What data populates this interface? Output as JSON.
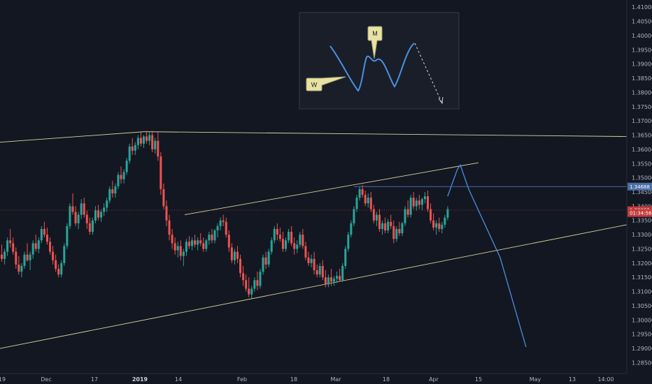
{
  "chart_data": {
    "type": "candlestick",
    "y_axis": {
      "range": [
        1.2775,
        1.4125
      ],
      "ticks": [
        "1.41000",
        "1.40500",
        "1.40000",
        "1.39500",
        "1.39000",
        "1.38500",
        "1.38000",
        "1.37500",
        "1.37000",
        "1.36500",
        "1.36000",
        "1.35500",
        "1.35000",
        "1.34500",
        "1.34000",
        "1.33500",
        "1.33000",
        "1.32500",
        "1.32000",
        "1.31500",
        "1.31000",
        "1.30500",
        "1.30000",
        "1.29500",
        "1.29000",
        "1.28500",
        "1.28000"
      ]
    },
    "x_axis": {
      "ticks": [
        {
          "label": "19",
          "bold": false
        },
        {
          "label": "Dec",
          "bold": false
        },
        {
          "label": "17",
          "bold": false
        },
        {
          "label": "2019",
          "bold": true
        },
        {
          "label": "14",
          "bold": false
        },
        {
          "label": "Feb",
          "bold": false
        },
        {
          "label": "18",
          "bold": false
        },
        {
          "label": "Mar",
          "bold": false
        },
        {
          "label": "18",
          "bold": false
        },
        {
          "label": "Apr",
          "bold": false
        },
        {
          "label": "15",
          "bold": false
        },
        {
          "label": "May",
          "bold": false
        },
        {
          "label": "13",
          "bold": false
        },
        {
          "label": "14:00",
          "bold": false
        }
      ]
    },
    "price_badges": [
      {
        "label": "1.34688",
        "value": 1.3469,
        "color": "#4a6fa5"
      },
      {
        "label": "1.33862",
        "value": 1.3386,
        "color": "#c13b3b"
      },
      {
        "label": "01:34:56",
        "value": 1.3376,
        "color": "#c13b3b"
      }
    ],
    "candles_ohlc": [
      [
        1.323,
        1.3265,
        1.3205,
        1.3215
      ],
      [
        1.3215,
        1.325,
        1.3195,
        1.324
      ],
      [
        1.324,
        1.329,
        1.3225,
        1.328
      ],
      [
        1.328,
        1.332,
        1.3255,
        1.327
      ],
      [
        1.327,
        1.329,
        1.323,
        1.324
      ],
      [
        1.324,
        1.3255,
        1.318,
        1.3195
      ],
      [
        1.3195,
        1.3225,
        1.316,
        1.317
      ],
      [
        1.317,
        1.32,
        1.315,
        1.319
      ],
      [
        1.319,
        1.324,
        1.318,
        1.323
      ],
      [
        1.323,
        1.327,
        1.3205,
        1.321
      ],
      [
        1.321,
        1.324,
        1.3175,
        1.323
      ],
      [
        1.323,
        1.328,
        1.3215,
        1.327
      ],
      [
        1.327,
        1.33,
        1.324,
        1.325
      ],
      [
        1.325,
        1.329,
        1.3235,
        1.328
      ],
      [
        1.328,
        1.333,
        1.327,
        1.332
      ],
      [
        1.332,
        1.3345,
        1.329,
        1.33
      ],
      [
        1.33,
        1.3325,
        1.3265,
        1.3275
      ],
      [
        1.3275,
        1.329,
        1.323,
        1.324
      ],
      [
        1.324,
        1.326,
        1.3195,
        1.321
      ],
      [
        1.321,
        1.323,
        1.317,
        1.318
      ],
      [
        1.318,
        1.3195,
        1.315,
        1.316
      ],
      [
        1.316,
        1.321,
        1.315,
        1.32
      ],
      [
        1.32,
        1.327,
        1.319,
        1.326
      ],
      [
        1.326,
        1.334,
        1.325,
        1.333
      ],
      [
        1.333,
        1.341,
        1.332,
        1.34
      ],
      [
        1.34,
        1.3445,
        1.337,
        1.338
      ],
      [
        1.338,
        1.34,
        1.333,
        1.334
      ],
      [
        1.334,
        1.338,
        1.332,
        1.337
      ],
      [
        1.337,
        1.3425,
        1.3355,
        1.341
      ],
      [
        1.341,
        1.343,
        1.336,
        1.337
      ],
      [
        1.337,
        1.3385,
        1.332,
        1.334
      ],
      [
        1.334,
        1.336,
        1.33,
        1.331
      ],
      [
        1.331,
        1.336,
        1.33,
        1.335
      ],
      [
        1.335,
        1.34,
        1.334,
        1.3385
      ],
      [
        1.3385,
        1.3405,
        1.335,
        1.336
      ],
      [
        1.336,
        1.339,
        1.3345,
        1.338
      ],
      [
        1.338,
        1.341,
        1.3365,
        1.3395
      ],
      [
        1.3395,
        1.343,
        1.338,
        1.342
      ],
      [
        1.342,
        1.347,
        1.341,
        1.346
      ],
      [
        1.346,
        1.349,
        1.343,
        1.3445
      ],
      [
        1.3445,
        1.348,
        1.343,
        1.347
      ],
      [
        1.347,
        1.352,
        1.346,
        1.351
      ],
      [
        1.351,
        1.354,
        1.348,
        1.3495
      ],
      [
        1.3495,
        1.353,
        1.348,
        1.352
      ],
      [
        1.352,
        1.357,
        1.351,
        1.356
      ],
      [
        1.356,
        1.362,
        1.355,
        1.361
      ],
      [
        1.361,
        1.364,
        1.358,
        1.3595
      ],
      [
        1.3595,
        1.3625,
        1.358,
        1.3615
      ],
      [
        1.3615,
        1.365,
        1.36,
        1.364
      ],
      [
        1.364,
        1.366,
        1.361,
        1.362
      ],
      [
        1.362,
        1.365,
        1.3605,
        1.3645
      ],
      [
        1.3645,
        1.3665,
        1.362,
        1.363
      ],
      [
        1.363,
        1.366,
        1.3615,
        1.365
      ],
      [
        1.365,
        1.3665,
        1.359,
        1.36
      ],
      [
        1.36,
        1.364,
        1.3585,
        1.363
      ],
      [
        1.363,
        1.366,
        1.356,
        1.3575
      ],
      [
        1.3575,
        1.359,
        1.344,
        1.346
      ],
      [
        1.346,
        1.348,
        1.339,
        1.34
      ],
      [
        1.34,
        1.342,
        1.333,
        1.335
      ],
      [
        1.335,
        1.337,
        1.328,
        1.33
      ],
      [
        1.33,
        1.332,
        1.325,
        1.327
      ],
      [
        1.327,
        1.329,
        1.323,
        1.3245
      ],
      [
        1.3245,
        1.3275,
        1.322,
        1.326
      ],
      [
        1.326,
        1.328,
        1.321,
        1.3225
      ],
      [
        1.3225,
        1.325,
        1.319,
        1.324
      ],
      [
        1.324,
        1.3285,
        1.3225,
        1.3275
      ],
      [
        1.3275,
        1.3295,
        1.325,
        1.326
      ],
      [
        1.326,
        1.329,
        1.3245,
        1.328
      ],
      [
        1.328,
        1.33,
        1.3255,
        1.3265
      ],
      [
        1.3265,
        1.329,
        1.3245,
        1.328
      ],
      [
        1.328,
        1.3305,
        1.326,
        1.327
      ],
      [
        1.327,
        1.329,
        1.324,
        1.325
      ],
      [
        1.325,
        1.3285,
        1.324,
        1.328
      ],
      [
        1.328,
        1.331,
        1.3265,
        1.33
      ],
      [
        1.33,
        1.332,
        1.327,
        1.328
      ],
      [
        1.328,
        1.332,
        1.327,
        1.3315
      ],
      [
        1.3315,
        1.334,
        1.329,
        1.333
      ],
      [
        1.333,
        1.336,
        1.3315,
        1.335
      ],
      [
        1.335,
        1.337,
        1.333,
        1.3345
      ],
      [
        1.3345,
        1.336,
        1.329,
        1.33
      ],
      [
        1.33,
        1.3315,
        1.324,
        1.3255
      ],
      [
        1.3255,
        1.327,
        1.32,
        1.321
      ],
      [
        1.321,
        1.325,
        1.3195,
        1.324
      ],
      [
        1.324,
        1.326,
        1.32,
        1.3215
      ],
      [
        1.3215,
        1.323,
        1.315,
        1.3165
      ],
      [
        1.3165,
        1.319,
        1.312,
        1.314
      ],
      [
        1.314,
        1.316,
        1.31,
        1.311
      ],
      [
        1.311,
        1.315,
        1.308,
        1.309
      ],
      [
        1.309,
        1.312,
        1.3075,
        1.311
      ],
      [
        1.311,
        1.315,
        1.31,
        1.314
      ],
      [
        1.314,
        1.317,
        1.3105,
        1.312
      ],
      [
        1.312,
        1.318,
        1.311,
        1.317
      ],
      [
        1.317,
        1.323,
        1.316,
        1.322
      ],
      [
        1.322,
        1.324,
        1.318,
        1.3195
      ],
      [
        1.3195,
        1.325,
        1.3185,
        1.324
      ],
      [
        1.324,
        1.329,
        1.323,
        1.328
      ],
      [
        1.328,
        1.333,
        1.327,
        1.332
      ],
      [
        1.332,
        1.334,
        1.328,
        1.33
      ],
      [
        1.33,
        1.3325,
        1.3275,
        1.3285
      ],
      [
        1.3285,
        1.331,
        1.324,
        1.325
      ],
      [
        1.325,
        1.329,
        1.324,
        1.328
      ],
      [
        1.328,
        1.332,
        1.327,
        1.331
      ],
      [
        1.331,
        1.333,
        1.326,
        1.327
      ],
      [
        1.327,
        1.329,
        1.323,
        1.325
      ],
      [
        1.325,
        1.328,
        1.3235,
        1.3265
      ],
      [
        1.3265,
        1.331,
        1.3255,
        1.33
      ],
      [
        1.33,
        1.332,
        1.325,
        1.326
      ],
      [
        1.326,
        1.3275,
        1.321,
        1.322
      ],
      [
        1.322,
        1.324,
        1.319,
        1.32
      ],
      [
        1.32,
        1.323,
        1.3185,
        1.3215
      ],
      [
        1.3215,
        1.324,
        1.316,
        1.3175
      ],
      [
        1.3175,
        1.3195,
        1.315,
        1.316
      ],
      [
        1.316,
        1.32,
        1.315,
        1.319
      ],
      [
        1.319,
        1.321,
        1.314,
        1.315
      ],
      [
        1.315,
        1.3175,
        1.3115,
        1.3125
      ],
      [
        1.3125,
        1.316,
        1.3115,
        1.315
      ],
      [
        1.315,
        1.318,
        1.312,
        1.3135
      ],
      [
        1.3135,
        1.3155,
        1.312,
        1.3145
      ],
      [
        1.3145,
        1.317,
        1.313,
        1.3155
      ],
      [
        1.3155,
        1.318,
        1.3135,
        1.314
      ],
      [
        1.314,
        1.32,
        1.3135,
        1.319
      ],
      [
        1.319,
        1.326,
        1.318,
        1.325
      ],
      [
        1.325,
        1.331,
        1.324,
        1.33
      ],
      [
        1.33,
        1.335,
        1.329,
        1.334
      ],
      [
        1.334,
        1.34,
        1.333,
        1.339
      ],
      [
        1.339,
        1.344,
        1.338,
        1.343
      ],
      [
        1.343,
        1.347,
        1.342,
        1.346
      ],
      [
        1.346,
        1.3475,
        1.343,
        1.344
      ],
      [
        1.344,
        1.3455,
        1.34,
        1.341
      ],
      [
        1.341,
        1.3445,
        1.3395,
        1.343
      ],
      [
        1.343,
        1.345,
        1.338,
        1.339
      ],
      [
        1.339,
        1.3405,
        1.334,
        1.335
      ],
      [
        1.335,
        1.338,
        1.333,
        1.337
      ],
      [
        1.337,
        1.339,
        1.331,
        1.332
      ],
      [
        1.332,
        1.335,
        1.33,
        1.334
      ],
      [
        1.334,
        1.336,
        1.3305,
        1.3315
      ],
      [
        1.3315,
        1.3355,
        1.3305,
        1.3345
      ],
      [
        1.3345,
        1.337,
        1.332,
        1.333
      ],
      [
        1.333,
        1.335,
        1.327,
        1.3285
      ],
      [
        1.3285,
        1.333,
        1.3275,
        1.332
      ],
      [
        1.332,
        1.3345,
        1.3295,
        1.3305
      ],
      [
        1.3305,
        1.3345,
        1.3295,
        1.334
      ],
      [
        1.334,
        1.34,
        1.333,
        1.339
      ],
      [
        1.339,
        1.342,
        1.336,
        1.337
      ],
      [
        1.337,
        1.344,
        1.336,
        1.343
      ],
      [
        1.343,
        1.345,
        1.339,
        1.34
      ],
      [
        1.34,
        1.343,
        1.3385,
        1.342
      ],
      [
        1.342,
        1.344,
        1.339,
        1.3405
      ],
      [
        1.3405,
        1.343,
        1.3385,
        1.3425
      ],
      [
        1.3425,
        1.345,
        1.341,
        1.3435
      ],
      [
        1.3435,
        1.3455,
        1.338,
        1.339
      ],
      [
        1.339,
        1.341,
        1.334,
        1.335
      ],
      [
        1.335,
        1.3375,
        1.3315,
        1.3325
      ],
      [
        1.3325,
        1.335,
        1.33,
        1.334
      ],
      [
        1.334,
        1.336,
        1.331,
        1.332
      ],
      [
        1.332,
        1.3345,
        1.3305,
        1.3335
      ],
      [
        1.3335,
        1.337,
        1.3325,
        1.336
      ],
      [
        1.336,
        1.34,
        1.335,
        1.339
      ]
    ],
    "forecast_path": [
      [
        0,
        1.3435
      ],
      [
        8,
        1.349
      ],
      [
        14,
        1.353
      ],
      [
        18,
        1.3545
      ],
      [
        30,
        1.346
      ],
      [
        75,
        1.322
      ],
      [
        112,
        1.2905
      ]
    ],
    "trendlines": [
      {
        "name": "upper-resistance",
        "from": [
          0,
          1.3625
        ],
        "to": [
          1,
          1.3662
        ]
      },
      {
        "name": "top-horizontal",
        "from": [
          1,
          1.3662
        ],
        "to": [
          2,
          1.3645
        ]
      },
      {
        "name": "channel-top",
        "from": [
          3,
          1.337
        ],
        "to": [
          4,
          1.3553
        ]
      },
      {
        "name": "support",
        "from": [
          5,
          1.29
        ],
        "to": [
          6,
          1.3335
        ]
      }
    ],
    "inset": {
      "callouts": [
        {
          "label": "W"
        },
        {
          "label": "M"
        }
      ]
    }
  }
}
